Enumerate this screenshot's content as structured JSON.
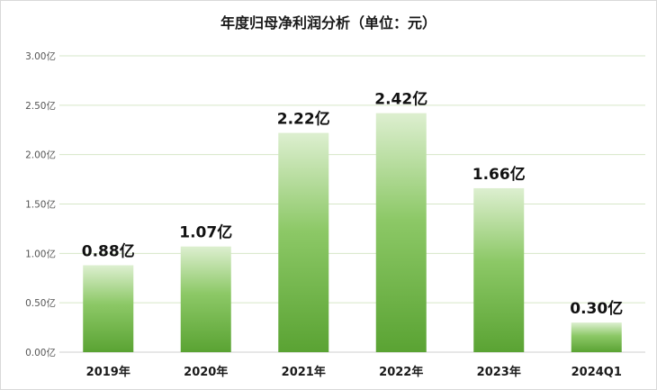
{
  "chart_data": {
    "type": "bar",
    "title": "年度归母净利润分析（单位：元）",
    "categories": [
      "2019年",
      "2020年",
      "2021年",
      "2022年",
      "2023年",
      "2024Q1"
    ],
    "values": [
      0.88,
      1.07,
      2.22,
      2.42,
      1.66,
      0.3
    ],
    "data_labels": [
      "0.88亿",
      "1.07亿",
      "2.22亿",
      "2.42亿",
      "1.66亿",
      "0.30亿"
    ],
    "ytick_labels": [
      "0.00亿",
      "0.50亿",
      "1.00亿",
      "1.50亿",
      "2.00亿",
      "2.50亿",
      "3.00亿"
    ],
    "ylim": [
      0,
      3.0
    ],
    "ystep": 0.5,
    "grid": true,
    "bar_color_top": "#ddefd0",
    "bar_color_bottom": "#5aa333",
    "grid_color": "#d6e7c8"
  }
}
